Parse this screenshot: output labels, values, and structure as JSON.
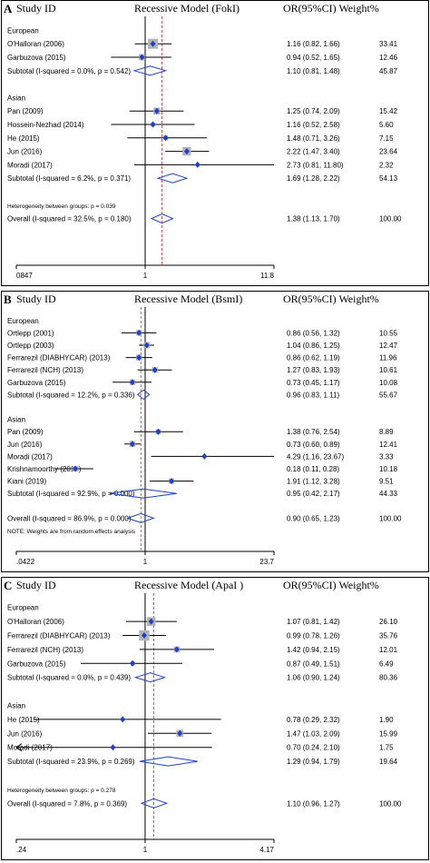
{
  "chart_data": [
    {
      "type": "forest",
      "panel_letter": "A",
      "study_col_label": "Study ID",
      "model_label": "Recessive Model (FokI)",
      "or_col_label": "OR(95%CI) Weight%",
      "axis_ticks": [
        "0847",
        "1",
        "11.8"
      ],
      "axis_tick_values": [
        0.0847,
        1,
        11.8
      ],
      "axis_range": [
        0.0847,
        11.8
      ],
      "scale": "log",
      "overall_or": 1.38,
      "rows": [
        {
          "kind": "group",
          "label": "European"
        },
        {
          "kind": "study",
          "label": "O'Halloran (2006)",
          "or": 1.16,
          "lo": 0.82,
          "hi": 1.66,
          "weight": "33.41",
          "ci_text": "1.16 (0.82, 1.66)"
        },
        {
          "kind": "study",
          "label": "Garbuzova (2015)",
          "or": 0.94,
          "lo": 0.52,
          "hi": 1.65,
          "weight": "12.46",
          "ci_text": "0.94 (0.52, 1.65)"
        },
        {
          "kind": "subtotal",
          "label": "Subtotal  (I-squared = 0.0%, p = 0.542)",
          "or": 1.1,
          "lo": 0.81,
          "hi": 1.48,
          "weight": "45.87",
          "ci_text": "1.10 (0.81, 1.48)"
        },
        {
          "kind": "blank"
        },
        {
          "kind": "group",
          "label": "Asian"
        },
        {
          "kind": "study",
          "label": "Pan (2009)",
          "or": 1.25,
          "lo": 0.74,
          "hi": 2.09,
          "weight": "15.42",
          "ci_text": "1.25 (0.74, 2.09)"
        },
        {
          "kind": "study",
          "label": "Hossein-Nezhad (2014)",
          "or": 1.16,
          "lo": 0.52,
          "hi": 2.58,
          "weight": "5.60",
          "ci_text": "1.16 (0.52, 2.58)"
        },
        {
          "kind": "study",
          "label": "He (2015)",
          "or": 1.48,
          "lo": 0.71,
          "hi": 3.26,
          "weight": "7.15",
          "ci_text": "1.48 (0.71, 3.26)"
        },
        {
          "kind": "study",
          "label": "Jun (2016)",
          "or": 2.22,
          "lo": 1.47,
          "hi": 3.4,
          "weight": "23.64",
          "ci_text": "2.22 (1.47, 3.40)"
        },
        {
          "kind": "study",
          "label": "Moradi (2017)",
          "or": 2.73,
          "lo": 0.81,
          "hi": 11.8,
          "weight": "2.32",
          "ci_text": "2.73 (0.81, 11.80)"
        },
        {
          "kind": "subtotal",
          "label": "Subtotal  (I-squared = 6.2%, p = 0.371)",
          "or": 1.69,
          "lo": 1.28,
          "hi": 2.22,
          "weight": "54.13",
          "ci_text": "1.69 (1.28, 2.22)"
        },
        {
          "kind": "blank"
        },
        {
          "kind": "note",
          "label": "Heterogeneity between groups: p = 0.039"
        },
        {
          "kind": "overall",
          "label": "Overall  (I-squared = 32.5%, p = 0.180)",
          "or": 1.38,
          "lo": 1.13,
          "hi": 1.7,
          "weight": "100.00",
          "ci_text": "1.38 (1.13, 1.70)"
        }
      ]
    },
    {
      "type": "forest",
      "panel_letter": "B",
      "study_col_label": "Study ID",
      "model_label": "Recessive Model (BsmI)",
      "or_col_label": "OR(95%CI) Weight%",
      "axis_ticks": [
        ".0422",
        "1",
        "23.7"
      ],
      "axis_tick_values": [
        0.0422,
        1,
        23.7
      ],
      "axis_range": [
        0.0422,
        23.7
      ],
      "scale": "log",
      "overall_or": 0.9,
      "rows": [
        {
          "kind": "group",
          "label": "European"
        },
        {
          "kind": "study",
          "label": "Ortlepp (2001)",
          "or": 0.86,
          "lo": 0.56,
          "hi": 1.32,
          "weight": "10.55",
          "ci_text": "0.86 (0.56, 1.32)"
        },
        {
          "kind": "study",
          "label": "Ortlepp (2003)",
          "or": 1.04,
          "lo": 0.86,
          "hi": 1.25,
          "weight": "12.47",
          "ci_text": "1.04 (0.86, 1.25)"
        },
        {
          "kind": "study",
          "label": "Ferrarezil (DIABHYCAR) (2013)",
          "or": 0.86,
          "lo": 0.62,
          "hi": 1.19,
          "weight": "11.96",
          "ci_text": "0.86 (0.62, 1.19)"
        },
        {
          "kind": "study",
          "label": "Ferrarezil (NCH) (2013)",
          "or": 1.27,
          "lo": 0.83,
          "hi": 1.93,
          "weight": "10.61",
          "ci_text": "1.27 (0.83, 1.93)"
        },
        {
          "kind": "study",
          "label": "Garbuzova (2015)",
          "or": 0.73,
          "lo": 0.45,
          "hi": 1.17,
          "weight": "10.08",
          "ci_text": "0.73 (0.45, 1.17)"
        },
        {
          "kind": "subtotal",
          "label": "Subtotal  (I-squared = 12.2%, p = 0.336)",
          "or": 0.96,
          "lo": 0.83,
          "hi": 1.11,
          "weight": "55.67",
          "ci_text": "0.96 (0.83, 1.11)"
        },
        {
          "kind": "blank"
        },
        {
          "kind": "group",
          "label": "Asian"
        },
        {
          "kind": "study",
          "label": "Pan (2009)",
          "or": 1.38,
          "lo": 0.76,
          "hi": 2.54,
          "weight": "8.89",
          "ci_text": "1.38 (0.76, 2.54)"
        },
        {
          "kind": "study",
          "label": "Jun (2016)",
          "or": 0.73,
          "lo": 0.6,
          "hi": 0.89,
          "weight": "12.41",
          "ci_text": "0.73 (0.60, 0.89)"
        },
        {
          "kind": "study",
          "label": "Moradi (2017)",
          "or": 4.29,
          "lo": 1.16,
          "hi": 23.67,
          "weight": "3.33",
          "ci_text": "4.29 (1.16, 23.67)"
        },
        {
          "kind": "study",
          "label": "Krishnamoorthy (2018)",
          "or": 0.18,
          "lo": 0.11,
          "hi": 0.28,
          "weight": "10.18",
          "ci_text": "0.18 (0.11, 0.28)"
        },
        {
          "kind": "study",
          "label": "Kiani (2019)",
          "or": 1.91,
          "lo": 1.12,
          "hi": 3.28,
          "weight": "9.51",
          "ci_text": "1.91 (1.12, 3.28)"
        },
        {
          "kind": "subtotal",
          "label": "Subtotal  (I-squared = 92.9%, p = 0.000)",
          "or": 0.95,
          "lo": 0.42,
          "hi": 2.17,
          "weight": "44.33",
          "ci_text": "0.95 (0.42, 2.17)"
        },
        {
          "kind": "blank"
        },
        {
          "kind": "overall",
          "label": "Overall  (I-squared = 86.9%, p = 0.000)",
          "or": 0.9,
          "lo": 0.65,
          "hi": 1.23,
          "weight": "100.00",
          "ci_text": "0.90 (0.65, 1.23)"
        },
        {
          "kind": "note",
          "label": "NOTE: Weights are from random effects analysis"
        }
      ]
    },
    {
      "type": "forest",
      "panel_letter": "C",
      "study_col_label": "Study ID",
      "model_label": "Recessive Model (ApaI )",
      "or_col_label": "OR(95%CI) Weight%",
      "axis_ticks": [
        ".24",
        "1",
        "4.17"
      ],
      "axis_tick_values": [
        0.24,
        1,
        4.17
      ],
      "axis_range": [
        0.24,
        4.17
      ],
      "scale": "log",
      "overall_or": 1.1,
      "rows": [
        {
          "kind": "group",
          "label": "European"
        },
        {
          "kind": "study",
          "label": "O'Halloran (2006)",
          "or": 1.07,
          "lo": 0.81,
          "hi": 1.42,
          "weight": "26.10",
          "ci_text": "1.07 (0.81, 1.42)"
        },
        {
          "kind": "study",
          "label": "Ferrarezil (DIABHYCAR) (2013)",
          "or": 0.99,
          "lo": 0.78,
          "hi": 1.26,
          "weight": "35.76",
          "ci_text": "0.99 (0.78, 1.26)"
        },
        {
          "kind": "study",
          "label": "Ferrarezil (NCH) (2013)",
          "or": 1.42,
          "lo": 0.94,
          "hi": 2.15,
          "weight": "12.01",
          "ci_text": "1.42 (0.94, 2.15)"
        },
        {
          "kind": "study",
          "label": "Garbuzova (2015)",
          "or": 0.87,
          "lo": 0.49,
          "hi": 1.51,
          "weight": "6.49",
          "ci_text": "0.87 (0.49, 1.51)"
        },
        {
          "kind": "subtotal",
          "label": "Subtotal  (I-squared = 0.0%, p = 0.439)",
          "or": 1.06,
          "lo": 0.9,
          "hi": 1.24,
          "weight": "80.36",
          "ci_text": "1.06 (0.90, 1.24)"
        },
        {
          "kind": "blank"
        },
        {
          "kind": "group",
          "label": "Asian"
        },
        {
          "kind": "study",
          "label": "He (2015)",
          "or": 0.78,
          "lo": 0.29,
          "hi": 2.32,
          "weight": "1.90",
          "ci_text": "0.78 (0.29, 2.32)"
        },
        {
          "kind": "study",
          "label": "Jun (2016)",
          "or": 1.47,
          "lo": 1.03,
          "hi": 2.09,
          "weight": "15.99",
          "ci_text": "1.47 (1.03, 2.09)"
        },
        {
          "kind": "study",
          "label": "Moradi (2017)",
          "or": 0.7,
          "lo": 0.24,
          "hi": 2.1,
          "weight": "1.75",
          "ci_text": "0.70 (0.24, 2.10)"
        },
        {
          "kind": "subtotal",
          "label": "Subtotal  (I-squared = 23.9%, p = 0.269)",
          "or": 1.29,
          "lo": 0.94,
          "hi": 1.79,
          "weight": "19.64",
          "ci_text": "1.29 (0.94, 1.79)"
        },
        {
          "kind": "blank"
        },
        {
          "kind": "note",
          "label": "Heterogeneity between groups: p = 0.278"
        },
        {
          "kind": "overall",
          "label": "Overall  (I-squared = 7.8%, p = 0.369)",
          "or": 1.1,
          "lo": 0.96,
          "hi": 1.27,
          "weight": "100.00",
          "ci_text": "1.10 (0.96, 1.27)"
        }
      ]
    }
  ]
}
